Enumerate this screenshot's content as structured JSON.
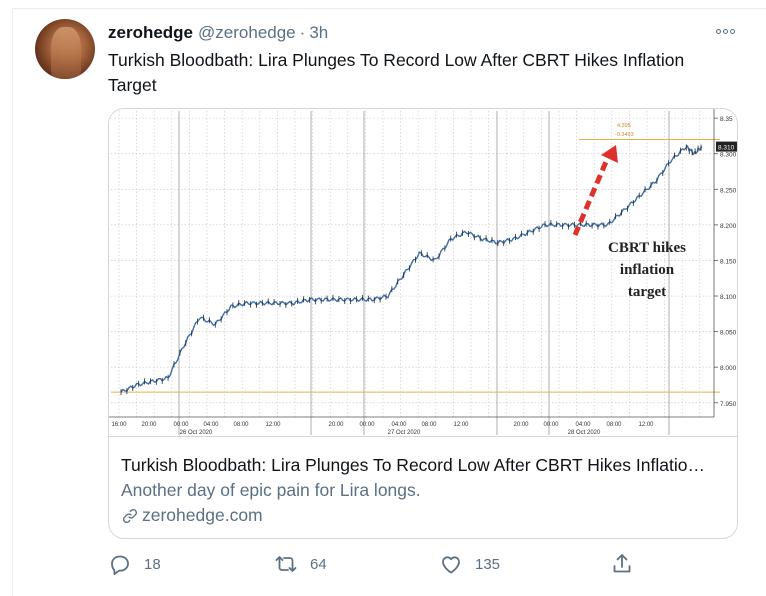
{
  "tweet": {
    "author_name": "zerohedge",
    "author_handle": "@zerohedge",
    "separator": "·",
    "time": "3h",
    "text": "Turkish Bloodbath: Lira Plunges To Record Low After CBRT Hikes Inflation Target"
  },
  "card": {
    "title": "Turkish Bloodbath: Lira Plunges To Record Low After CBRT Hikes Inflatio…",
    "description": "Another day of epic pain for Lira longs.",
    "domain": "zerohedge.com"
  },
  "actions": {
    "replies": "18",
    "retweets": "64",
    "likes": "135"
  },
  "icons": [
    "more-icon",
    "reply-icon",
    "retweet-icon",
    "like-icon",
    "share-icon",
    "link-icon"
  ],
  "colors": {
    "text_primary": "#0f1419",
    "text_secondary": "#5b7083",
    "border": "#cfd9de",
    "chart_line": "#3d6ea8",
    "chart_arrow": "#e0302b",
    "ref_line": "#e8b04a"
  },
  "chart_data": {
    "type": "line",
    "annotation": "CBRT hikes inflation target",
    "y_ticks": [
      "8.35",
      "8.300",
      "8.250",
      "8.200",
      "8.150",
      "8.100",
      "8.050",
      "8.000",
      "7.950"
    ],
    "y_ticks_values": [
      8.35,
      8.3,
      8.25,
      8.2,
      8.15,
      8.1,
      8.05,
      8.0,
      7.95
    ],
    "ylim": [
      7.93,
      8.36
    ],
    "current_value_label": "8.310",
    "top_labels": [
      "4.395",
      "-0.3493"
    ],
    "x_tick_labels": [
      "16:00",
      "20:00",
      "00:00",
      "04:00",
      "08:00",
      "12:00",
      "20:00",
      "00:00",
      "04:00",
      "08:00",
      "12:00",
      "20:00",
      "00:00",
      "04:00",
      "08:00",
      "12:00"
    ],
    "date_labels": [
      "26 Oct 2020",
      "27 Oct 2020",
      "28 Oct 2020"
    ],
    "reference_lines": [
      7.965,
      8.32
    ],
    "series": [
      {
        "x": [
          0,
          2,
          4,
          6,
          8,
          10,
          12,
          14,
          16,
          18,
          20,
          22,
          24,
          26,
          28,
          30,
          32,
          34,
          36,
          38,
          40,
          42,
          44,
          46,
          48,
          50,
          52,
          54,
          56,
          58,
          60,
          62,
          64,
          66,
          68,
          70,
          72,
          73,
          74
        ],
        "values": [
          7.965,
          7.975,
          7.98,
          7.985,
          8.03,
          8.07,
          8.06,
          8.085,
          8.09,
          8.09,
          8.09,
          8.09,
          8.095,
          8.095,
          8.095,
          8.095,
          8.095,
          8.1,
          8.13,
          8.16,
          8.15,
          8.18,
          8.19,
          8.18,
          8.175,
          8.18,
          8.19,
          8.2,
          8.2,
          8.2,
          8.2,
          8.2,
          8.22,
          8.24,
          8.26,
          8.29,
          8.31,
          8.3,
          8.31
        ]
      }
    ]
  }
}
